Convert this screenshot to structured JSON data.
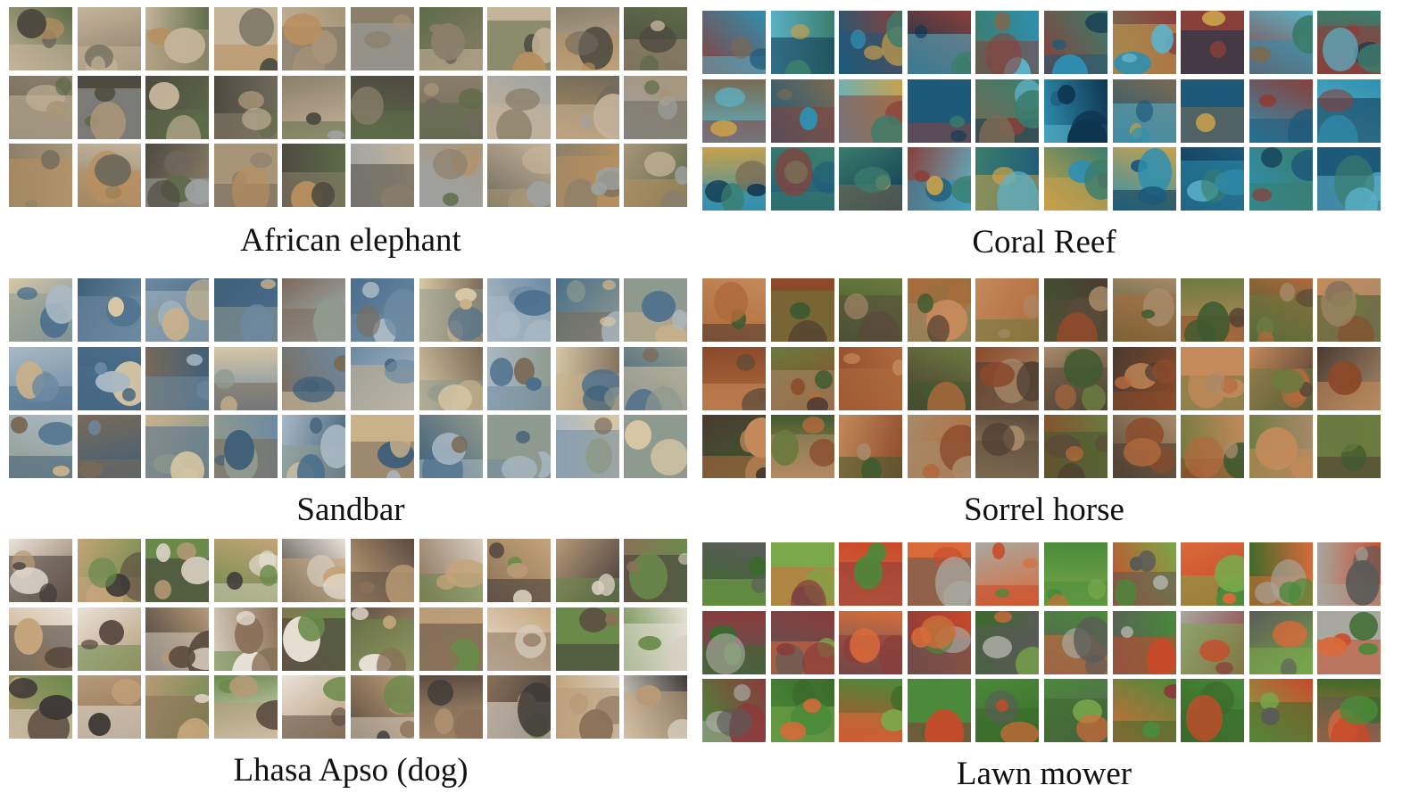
{
  "panels": [
    {
      "caption": "African elephant",
      "palette": [
        "#8b7f6a",
        "#a89578",
        "#6f6a5c",
        "#c4b49a",
        "#5d6b48",
        "#b88f5e",
        "#9ea2a3",
        "#4e4a40"
      ]
    },
    {
      "caption": "Coral Reef",
      "palette": [
        "#1d5a7a",
        "#2f8fb0",
        "#7a6a52",
        "#3a7d6c",
        "#c9a14a",
        "#0e3550",
        "#5cb3c9",
        "#8a3f3a"
      ]
    },
    {
      "caption": "Sandbar",
      "palette": [
        "#6d8aa3",
        "#a9b9c4",
        "#c9b18a",
        "#3f5f78",
        "#8f9a8e",
        "#d8c7a4",
        "#4a6e8c",
        "#7a6a58"
      ]
    },
    {
      "caption": "Sorrel horse",
      "palette": [
        "#8a4a2a",
        "#6b7a3f",
        "#b06a3c",
        "#5a4a3a",
        "#a88a6a",
        "#3f5a2f",
        "#c48a5a",
        "#4a3a30"
      ]
    },
    {
      "caption": "Lhasa Apso (dog)",
      "palette": [
        "#d8cfc0",
        "#8a7058",
        "#b89a78",
        "#5a4a40",
        "#e8e2d8",
        "#6a8a4a",
        "#c4a47a",
        "#3f3a38"
      ]
    },
    {
      "caption": "Lawn mower",
      "palette": [
        "#4a8a3a",
        "#c84a2a",
        "#7aa84a",
        "#5a5a58",
        "#d86a3a",
        "#3a6a2a",
        "#a8a8a0",
        "#8a3a3a"
      ]
    }
  ]
}
